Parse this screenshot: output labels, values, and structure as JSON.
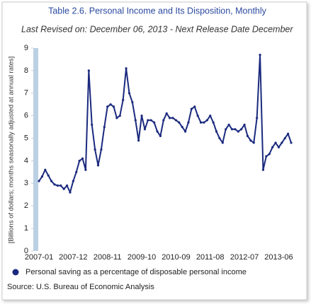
{
  "chart_data": {
    "type": "line",
    "title": "Table 2.6. Personal Income and Its Disposition, Monthly",
    "subtitle": "Last Revised on: December 06, 2013 - Next Release Date December",
    "y_label": "[Billions of dollars; months seasonally adjusted at annual rates]",
    "source": "Source: U.S. Bureau of Economic Analysis",
    "categories": [
      "2007-01",
      null,
      null,
      null,
      null,
      null,
      null,
      null,
      null,
      null,
      null,
      "2007-12",
      null,
      null,
      null,
      null,
      null,
      null,
      null,
      null,
      null,
      null,
      "2008-11",
      null,
      null,
      null,
      null,
      null,
      null,
      null,
      null,
      null,
      null,
      "2009-10",
      null,
      null,
      null,
      null,
      null,
      null,
      null,
      null,
      null,
      null,
      "2010-09",
      null,
      null,
      null,
      null,
      null,
      null,
      null,
      null,
      null,
      null,
      "2011-08",
      null,
      null,
      null,
      null,
      null,
      null,
      null,
      null,
      null,
      null,
      "2012-07",
      null,
      null,
      null,
      null,
      null,
      null,
      null,
      null,
      null,
      null,
      "2013-06",
      null,
      null,
      null,
      null
    ],
    "series": [
      {
        "name": "Personal saving as a percentage of disposable personal income",
        "color": "#1b2a7e",
        "values": [
          3.1,
          3.3,
          3.6,
          3.35,
          3.1,
          2.95,
          2.9,
          2.9,
          2.75,
          2.9,
          2.6,
          3.1,
          3.5,
          4.0,
          4.1,
          3.6,
          8.0,
          5.6,
          4.5,
          3.8,
          4.5,
          5.5,
          6.4,
          6.5,
          6.4,
          5.9,
          6.0,
          6.7,
          8.1,
          7.0,
          6.6,
          5.8,
          4.9,
          6.0,
          5.4,
          5.8,
          5.8,
          5.7,
          5.3,
          5.1,
          5.8,
          6.1,
          5.9,
          5.9,
          5.8,
          5.7,
          5.5,
          5.3,
          5.7,
          6.3,
          6.4,
          6.0,
          5.7,
          5.7,
          5.8,
          6.0,
          5.7,
          5.3,
          5.0,
          4.8,
          5.4,
          5.6,
          5.4,
          5.4,
          5.3,
          5.4,
          5.6,
          5.1,
          4.9,
          4.8,
          5.9,
          8.7,
          3.6,
          4.2,
          4.3,
          4.6,
          4.8,
          4.6,
          4.8,
          5.0,
          5.2,
          4.8
        ]
      }
    ],
    "ylim": [
      0,
      9
    ],
    "yticks": [
      0,
      1,
      2,
      3,
      4,
      5,
      6,
      7,
      8,
      9
    ],
    "grid": false
  }
}
